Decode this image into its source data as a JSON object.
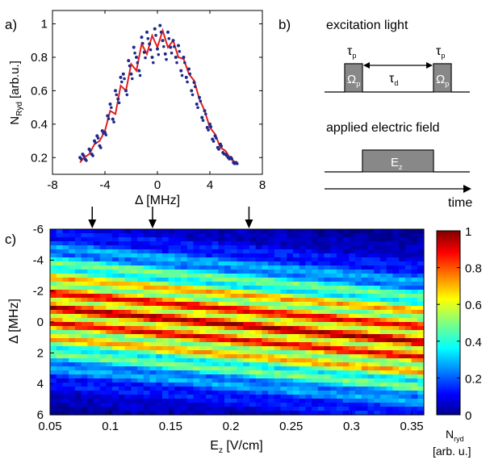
{
  "panel_labels": {
    "a": "a)",
    "b": "b)",
    "c": "c)"
  },
  "chart_data": [
    {
      "panel": "a",
      "type": "scatter",
      "xlabel": "Δ [MHz]",
      "ylabel_main": "N",
      "ylabel_sub": "Ryd",
      "ylabel_tail": " [arb.u.]",
      "xlim": [
        -8,
        8
      ],
      "ylim": [
        0.1,
        1.08
      ],
      "xticks": [
        -8,
        -4,
        0,
        4,
        8
      ],
      "yticks": [
        0.2,
        0.4,
        0.6,
        0.8,
        1
      ],
      "series": [
        {
          "kind": "points",
          "color": "#1e2a8c",
          "x": [
            -5.9,
            -5.7,
            -5.5,
            -5.2,
            -5.0,
            -4.8,
            -4.6,
            -4.4,
            -4.2,
            -4.0,
            -3.8,
            -3.6,
            -3.4,
            -3.2,
            -3.0,
            -2.8,
            -2.6,
            -2.4,
            -2.2,
            -2.0,
            -1.8,
            -1.6,
            -1.4,
            -1.2,
            -1.0,
            -0.8,
            -0.6,
            -0.4,
            -0.2,
            0.0,
            0.2,
            0.4,
            0.6,
            0.8,
            1.0,
            1.2,
            1.4,
            1.6,
            1.8,
            2.0,
            2.2,
            2.4,
            2.6,
            2.8,
            3.0,
            3.2,
            3.4,
            3.6,
            3.8,
            4.0,
            4.2,
            4.4,
            4.6,
            4.8,
            5.0,
            5.2,
            5.4,
            5.6,
            5.8,
            6.0
          ],
          "y": [
            0.2,
            0.22,
            0.19,
            0.25,
            0.22,
            0.3,
            0.33,
            0.27,
            0.36,
            0.35,
            0.45,
            0.52,
            0.43,
            0.6,
            0.55,
            0.68,
            0.7,
            0.6,
            0.78,
            0.7,
            0.86,
            0.8,
            0.72,
            0.92,
            0.83,
            0.95,
            0.88,
            0.8,
            0.97,
            0.85,
            0.99,
            0.9,
            0.82,
            0.95,
            0.86,
            0.9,
            0.8,
            0.87,
            0.72,
            0.8,
            0.68,
            0.73,
            0.6,
            0.65,
            0.52,
            0.56,
            0.44,
            0.48,
            0.38,
            0.4,
            0.31,
            0.33,
            0.26,
            0.28,
            0.23,
            0.22,
            0.2,
            0.2,
            0.17,
            0.17
          ]
        },
        {
          "kind": "line",
          "color": "#e0201b",
          "x": [
            -5.9,
            -5.6,
            -5.2,
            -4.8,
            -4.4,
            -4.0,
            -3.6,
            -3.2,
            -2.8,
            -2.4,
            -2.0,
            -1.6,
            -1.2,
            -0.8,
            -0.4,
            0.0,
            0.4,
            0.8,
            1.2,
            1.6,
            2.0,
            2.4,
            2.8,
            3.2,
            3.6,
            4.0,
            4.4,
            4.8,
            5.2,
            5.6,
            6.0
          ],
          "y": [
            0.17,
            0.2,
            0.22,
            0.28,
            0.3,
            0.36,
            0.48,
            0.46,
            0.63,
            0.6,
            0.76,
            0.72,
            0.88,
            0.82,
            0.93,
            0.86,
            0.96,
            0.86,
            0.9,
            0.8,
            0.79,
            0.7,
            0.66,
            0.55,
            0.48,
            0.38,
            0.34,
            0.26,
            0.24,
            0.19,
            0.17
          ]
        }
      ]
    },
    {
      "panel": "c",
      "type": "heatmap",
      "xlabel_main": "E",
      "xlabel_sub": "z",
      "xlabel_tail": " [V/cm]",
      "ylabel": "Δ [MHz]",
      "xlim": [
        0.05,
        0.36
      ],
      "ylim": [
        -6,
        6
      ],
      "xticks": [
        "0.05",
        "0.1",
        "0.15",
        "0.2",
        "0.25",
        "0.3",
        "0.35"
      ],
      "yticks": [
        "-6",
        "-4",
        "-2",
        "0",
        "2",
        "4",
        "6"
      ],
      "arrows_at": [
        0.085,
        0.135,
        0.215
      ],
      "description": "Rydberg population vs detuning and applied field; Ramsey-like fringes centered near 0 MHz, tilting downward with field",
      "colorbar": {
        "range": [
          0,
          1
        ],
        "ticks": [
          "0",
          "0.2",
          "0.4",
          "0.6",
          "0.8",
          "1"
        ],
        "label_main": "N",
        "label_sub": "ryd",
        "label_tail": "[arb. u.]"
      }
    }
  ],
  "schematic": {
    "excitation_label": "excitation light",
    "tau_p_left": "τ",
    "tau_p_left_sub": "p",
    "tau_p_right": "τ",
    "tau_p_right_sub": "p",
    "tau_d": "τ",
    "tau_d_sub": "d",
    "omega_left": "Ω",
    "omega_left_sub": "p",
    "omega_right": "Ω",
    "omega_right_sub": "p",
    "field_label": "applied electric field",
    "ez": "E",
    "ez_sub": "z",
    "time_label": "time"
  }
}
